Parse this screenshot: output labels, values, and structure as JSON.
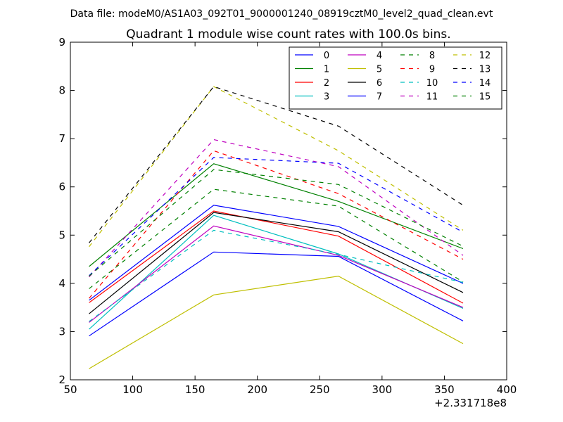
{
  "header": {
    "data_file": "Data file: modeM0/AS1A03_092T01_9000001240_08919cztM0_level2_quad_clean.evt"
  },
  "chart_data": {
    "type": "line",
    "title": "Quadrant 1 module wise count rates with 100.0s bins.",
    "xlabel": "",
    "ylabel": "",
    "x_offset_label": "+2.331718e8",
    "xlim": [
      50,
      400
    ],
    "ylim": [
      2,
      9
    ],
    "x_ticks": [
      50,
      100,
      150,
      200,
      250,
      300,
      350,
      400
    ],
    "y_ticks": [
      2,
      3,
      4,
      5,
      6,
      7,
      8,
      9
    ],
    "grid": false,
    "legend_placement": "top-right",
    "x": [
      65,
      165,
      265,
      365
    ],
    "series": [
      {
        "name": "0",
        "color": "#0000ff",
        "dashed": false,
        "values": [
          2.91,
          4.65,
          4.56,
          3.22
        ]
      },
      {
        "name": "1",
        "color": "#008000",
        "dashed": false,
        "values": [
          4.35,
          6.48,
          5.7,
          4.72
        ]
      },
      {
        "name": "2",
        "color": "#ff0000",
        "dashed": false,
        "values": [
          3.6,
          5.5,
          4.98,
          3.59
        ]
      },
      {
        "name": "3",
        "color": "#00bfbf",
        "dashed": false,
        "values": [
          3.05,
          5.41,
          4.61,
          3.48
        ]
      },
      {
        "name": "4",
        "color": "#bf00bf",
        "dashed": false,
        "values": [
          3.19,
          5.19,
          4.58,
          3.5
        ]
      },
      {
        "name": "5",
        "color": "#bfbf00",
        "dashed": false,
        "values": [
          2.23,
          3.76,
          4.15,
          2.75
        ]
      },
      {
        "name": "6",
        "color": "#000000",
        "dashed": false,
        "values": [
          3.37,
          5.47,
          5.07,
          3.81
        ]
      },
      {
        "name": "7",
        "color": "#0000ff",
        "dashed": false,
        "values": [
          3.65,
          5.62,
          5.18,
          4.0
        ]
      },
      {
        "name": "8",
        "color": "#008000",
        "dashed": true,
        "values": [
          3.89,
          5.95,
          5.6,
          4.03
        ]
      },
      {
        "name": "9",
        "color": "#ff0000",
        "dashed": true,
        "values": [
          3.69,
          6.75,
          5.86,
          4.5
        ]
      },
      {
        "name": "10",
        "color": "#00bfbf",
        "dashed": true,
        "values": [
          3.21,
          5.1,
          4.6,
          4.02
        ]
      },
      {
        "name": "11",
        "color": "#bf00bf",
        "dashed": true,
        "values": [
          4.13,
          6.98,
          6.42,
          4.58
        ]
      },
      {
        "name": "12",
        "color": "#bfbf00",
        "dashed": true,
        "values": [
          4.76,
          8.08,
          6.75,
          5.1
        ]
      },
      {
        "name": "13",
        "color": "#000000",
        "dashed": true,
        "values": [
          4.84,
          8.08,
          7.26,
          5.62
        ]
      },
      {
        "name": "14",
        "color": "#0000ff",
        "dashed": true,
        "values": [
          4.16,
          6.61,
          6.49,
          5.06
        ]
      },
      {
        "name": "15",
        "color": "#008000",
        "dashed": true,
        "values": [
          4.15,
          6.36,
          6.05,
          4.77
        ]
      }
    ]
  }
}
